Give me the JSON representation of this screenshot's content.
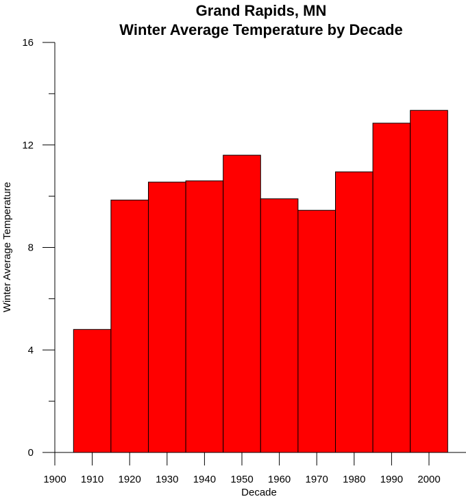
{
  "chart_data": {
    "type": "bar",
    "title": "Grand Rapids, MN",
    "subtitle": "Winter Average Temperature by Decade",
    "xlabel": "Decade",
    "ylabel": "Winter Average Temperature",
    "xlim": [
      1900,
      2010
    ],
    "ylim": [
      0,
      16
    ],
    "x_ticks": [
      1900,
      1910,
      1920,
      1930,
      1940,
      1950,
      1960,
      1970,
      1980,
      1990,
      2000
    ],
    "y_ticks_labeled": [
      0,
      4,
      8,
      12,
      16
    ],
    "y_ticks_minor": [
      2,
      6,
      10,
      14
    ],
    "bar_width": 10,
    "categories": [
      1910,
      1920,
      1930,
      1940,
      1950,
      1960,
      1970,
      1980,
      1990,
      2000
    ],
    "values": [
      4.8,
      9.85,
      10.55,
      10.6,
      11.6,
      9.9,
      9.45,
      10.95,
      12.85,
      13.35
    ],
    "grid": false,
    "bar_color": "#ff0000",
    "edge_color": "#000000"
  }
}
